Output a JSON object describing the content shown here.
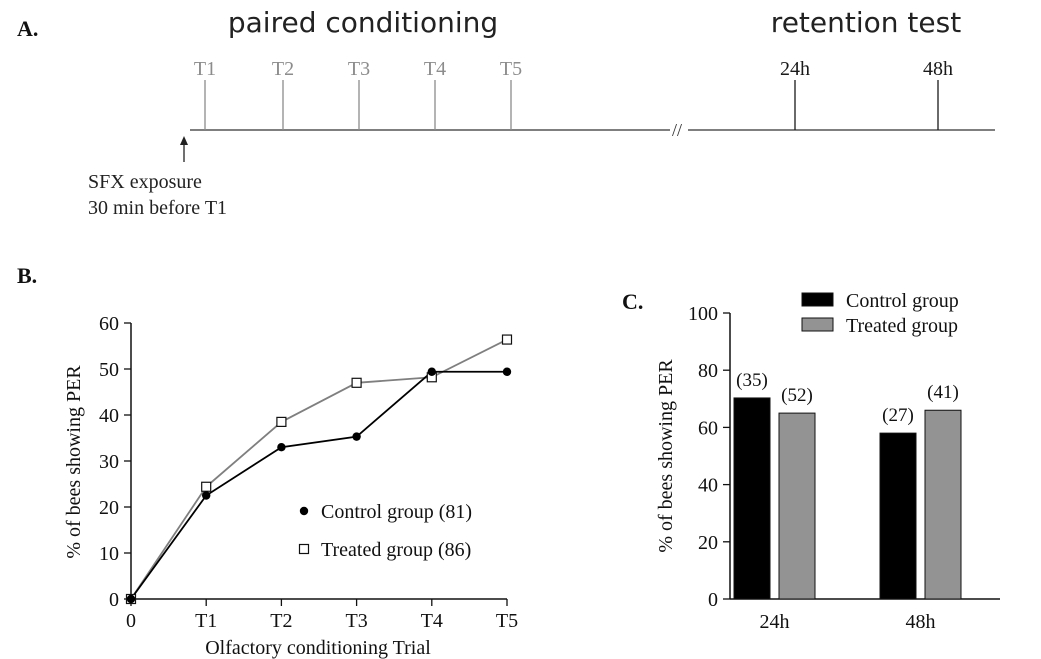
{
  "panel_a": {
    "label": "A.",
    "title_left": "paired conditioning",
    "title_right": "retention test",
    "trials": [
      "T1",
      "T2",
      "T3",
      "T4",
      "T5"
    ],
    "tests": [
      "24h",
      "48h"
    ],
    "break_mark": "//",
    "note_line1": "SFX exposure",
    "note_line2": "30 min before T1",
    "colors": {
      "trials": "#8c8c8c",
      "tests": "#1a1a1a",
      "timeline": "#333333"
    }
  },
  "panel_b": {
    "label": "B."
  },
  "panel_c": {
    "label": "C."
  },
  "chart_data": [
    {
      "type": "line",
      "categories": [
        "0",
        "T1",
        "T2",
        "T3",
        "T4",
        "T5"
      ],
      "series": [
        {
          "name": "Control group (81)",
          "values": [
            0,
            22.5,
            33,
            35.3,
            49.4,
            49.4
          ],
          "color": "#000000",
          "marker": "filled-circle"
        },
        {
          "name": "Treated group (86)",
          "values": [
            0,
            24.4,
            38.5,
            47,
            48.2,
            56.4
          ],
          "color": "#7f7f7f",
          "marker": "open-square"
        }
      ],
      "xlabel": "Olfactory conditioning Trial",
      "ylabel": "% of bees showing PER",
      "ylim": [
        0,
        60
      ],
      "yticks": [
        0,
        10,
        20,
        30,
        40,
        50,
        60
      ],
      "legend": "right",
      "grid": false
    },
    {
      "type": "bar",
      "categories": [
        "24h",
        "48h"
      ],
      "series": [
        {
          "name": "Control group",
          "values": [
            70.3,
            58
          ],
          "labels": [
            "(35)",
            "(27)"
          ],
          "color": "#000000"
        },
        {
          "name": "Treated group",
          "values": [
            65,
            66
          ],
          "labels": [
            "(52)",
            "(41)"
          ],
          "color": "#939393"
        }
      ],
      "xlabel": "",
      "ylabel": "% of bees showing PER",
      "ylim": [
        0,
        100
      ],
      "yticks": [
        0,
        20,
        40,
        60,
        80,
        100
      ],
      "legend": "top-right",
      "grid": false
    }
  ]
}
